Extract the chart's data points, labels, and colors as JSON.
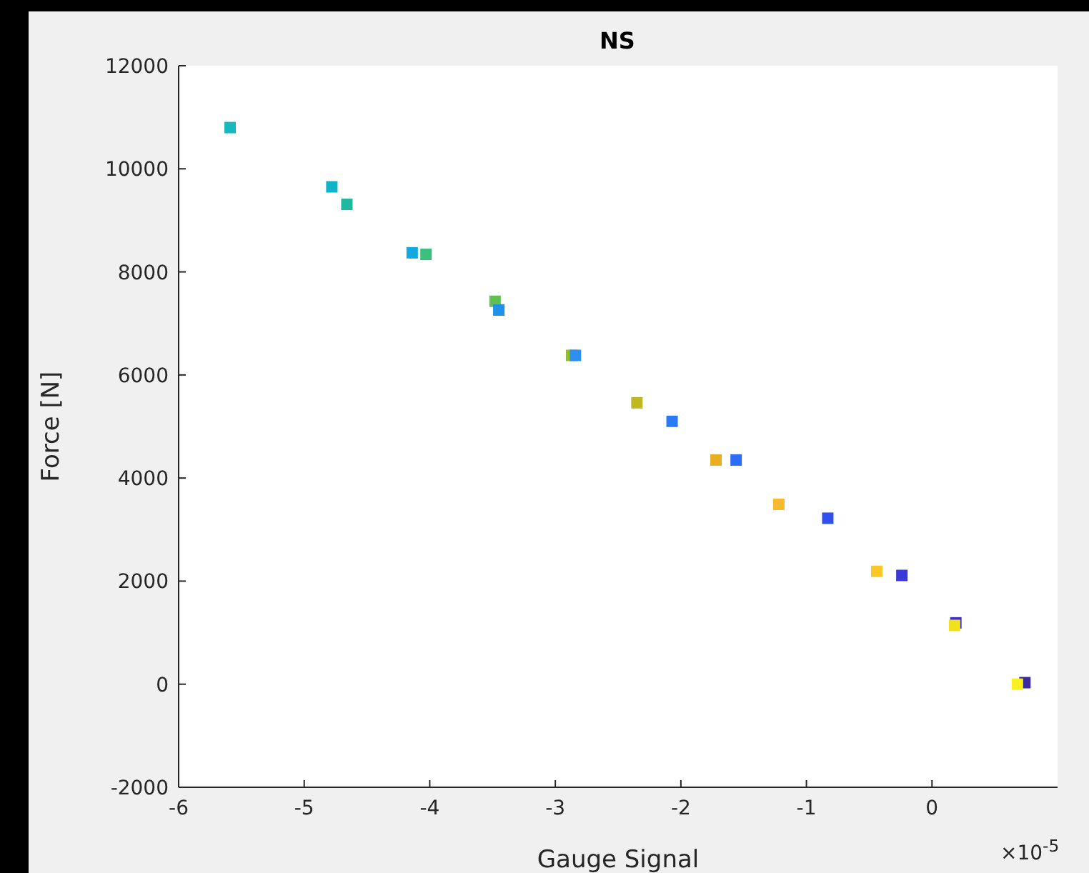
{
  "chart_data": {
    "type": "scatter",
    "title": "NS",
    "xlabel": "Gauge Signal",
    "ylabel": "Force [N]",
    "x": [
      -5.59,
      -4.78,
      -4.66,
      -4.14,
      -4.03,
      -3.48,
      -3.45,
      -2.87,
      -2.84,
      -2.35,
      -2.07,
      -1.72,
      -1.56,
      -1.22,
      -0.83,
      -0.44,
      -0.24,
      0.19,
      0.18,
      0.74,
      0.68
    ],
    "values": [
      10800,
      9650,
      9310,
      8370,
      8340,
      7430,
      7260,
      6380,
      6380,
      5460,
      5100,
      4350,
      4350,
      3490,
      3220,
      2190,
      2110,
      1190,
      1140,
      30,
      0
    ],
    "colors": [
      "#17b8c0",
      "#0fb3c8",
      "#20b8a0",
      "#12a8e0",
      "#3cc080",
      "#60c050",
      "#2090e8",
      "#90c030",
      "#2f8ff0",
      "#c0b820",
      "#2a7af8",
      "#e8b020",
      "#2d6cf8",
      "#f8b830",
      "#3050f0",
      "#f8c828",
      "#3a3ad8",
      "#4030c0",
      "#f0e020",
      "#3a2aa0",
      "#f8f020"
    ],
    "marker": "square",
    "xlim": [
      -6,
      1
    ],
    "xticks": [
      -6,
      -5,
      -4,
      -3,
      -2,
      -1,
      0
    ],
    "ylim": [
      -2000,
      12000
    ],
    "yticks": [
      -2000,
      0,
      2000,
      4000,
      6000,
      8000,
      10000,
      12000
    ],
    "annotations": [
      "×10$^{-5}$"
    ]
  }
}
